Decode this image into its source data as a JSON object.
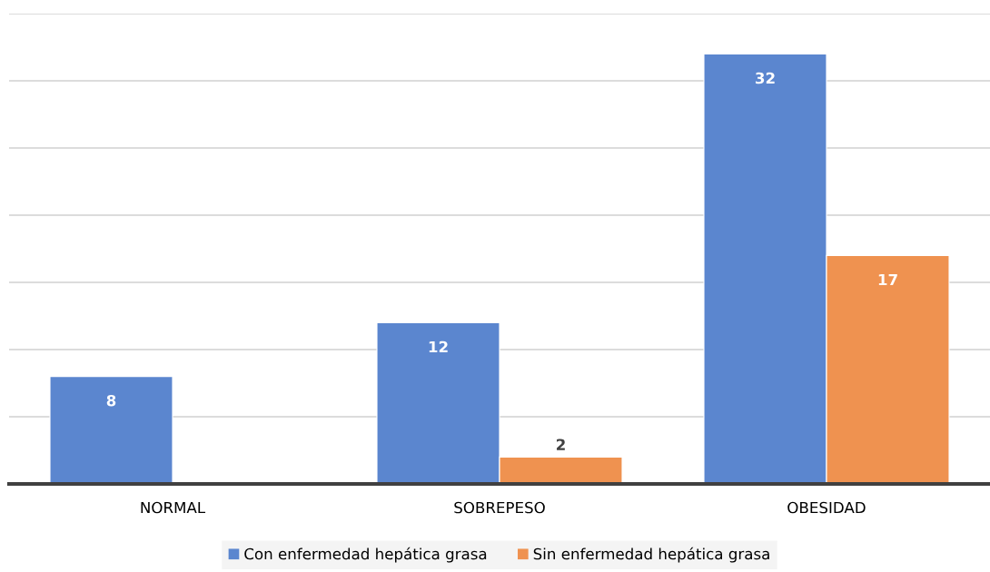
{
  "chart_data": {
    "type": "bar",
    "categories": [
      "NORMAL",
      "SOBREPESO",
      "OBESIDAD"
    ],
    "series": [
      {
        "name": "Con enfermedad hepática grasa",
        "color": "#5b86cf",
        "values": [
          8,
          12,
          32
        ]
      },
      {
        "name": "Sin enfermedad hepática grasa",
        "color": "#ef9250",
        "values": [
          null,
          2,
          17
        ]
      }
    ],
    "ylim": [
      0,
      35
    ],
    "yticks": [
      {
        "value": 0,
        "label": null
      },
      {
        "value": 5,
        "label": null
      },
      {
        "value": 10,
        "label": null
      },
      {
        "value": 15,
        "label": null
      },
      {
        "value": 20,
        "label": null
      },
      {
        "value": 25,
        "label": null
      },
      {
        "value": 30,
        "label": null
      },
      {
        "value": 35,
        "label": null
      }
    ],
    "tick_labels": "x",
    "grid": "y",
    "legend": "bottom",
    "data_labels": true
  }
}
